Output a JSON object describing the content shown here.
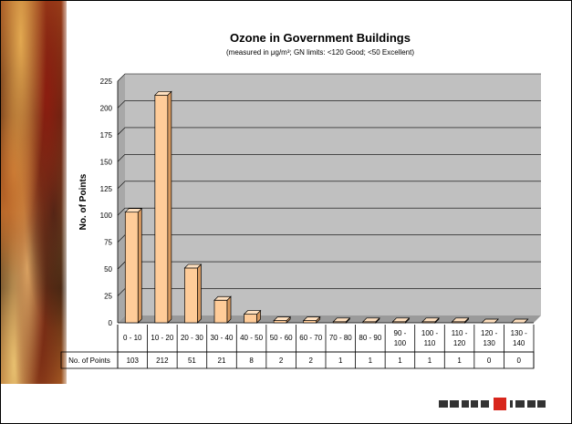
{
  "chart_data": {
    "type": "bar",
    "title": "Ozone in Government Buildings",
    "subtitle": "(measured in μg/m³; GN limits: <120 Good; <50 Excellent)",
    "xlabel": "",
    "ylabel": "No. of Points",
    "ylim": [
      0,
      225
    ],
    "yticks": [
      0,
      25,
      50,
      75,
      100,
      125,
      150,
      175,
      200,
      225
    ],
    "grid": true,
    "categories": [
      "0 - 10",
      "10 - 20",
      "20 - 30",
      "30 - 40",
      "40 - 50",
      "50 - 60",
      "60 - 70",
      "70 - 80",
      "80 - 90",
      "90 - 100",
      "100 - 110",
      "110 - 120",
      "120 - 130",
      "130 - 140"
    ],
    "series": [
      {
        "name": "No. of Points",
        "values": [
          103,
          212,
          51,
          21,
          8,
          2,
          2,
          1,
          1,
          1,
          1,
          1,
          0,
          0
        ]
      }
    ],
    "colors": {
      "bar": "#ffcc99",
      "bar_top": "#ffe0bf",
      "bar_side": "#d99a60",
      "plot_bg": "#c0c0c0",
      "wall_edge": "#a8a8a8"
    }
  }
}
